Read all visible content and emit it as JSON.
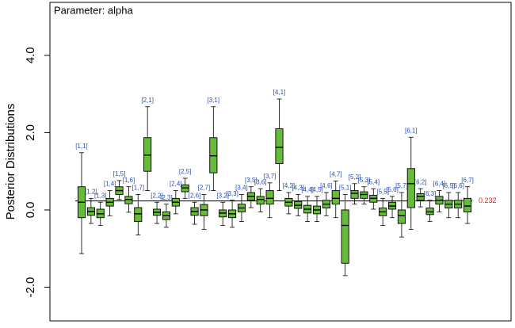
{
  "chart_data": {
    "type": "box",
    "title": "Parameter: alpha",
    "y_label": "Posterior Distributions",
    "categories": [
      "[1,1]",
      "[1,2]",
      "[1,3]",
      "[1,4]",
      "[1,5]",
      "[1,6]",
      "[1,7]",
      "[2,1]",
      "[2,2]",
      "[2,3]",
      "[2,4]",
      "[2,5]",
      "[2,6]",
      "[2,7]",
      "[3,1]",
      "[3,2]",
      "[3,3]",
      "[3,4]",
      "[3,5]",
      "[3,6]",
      "[3,7]",
      "[4,1]",
      "[4,2]",
      "[4,3]",
      "[4,4]",
      "[4,5]",
      "[4,6]",
      "[4,7]",
      "[5,1]",
      "[5,2]",
      "[5,3]",
      "[5,4]",
      "[5,5]",
      "[5,6]",
      "[5,7]",
      "[6,1]",
      "[6,2]",
      "[6,3]",
      "[6,4]",
      "[6,5]",
      "[6,6]",
      "[6,7]"
    ],
    "boxes": [
      [
        -1.13,
        -0.2,
        0.2,
        0.6,
        1.48
      ],
      [
        -0.35,
        -0.14,
        -0.04,
        0.06,
        0.3
      ],
      [
        -0.4,
        -0.2,
        -0.1,
        0.02,
        0.2
      ],
      [
        -0.15,
        0.1,
        0.2,
        0.3,
        0.5
      ],
      [
        0.27,
        0.4,
        0.5,
        0.6,
        0.76
      ],
      [
        -0.06,
        0.16,
        0.27,
        0.35,
        0.6
      ],
      [
        -0.65,
        -0.3,
        -0.1,
        0.06,
        0.4
      ],
      [
        0.5,
        1.0,
        1.42,
        1.87,
        2.67
      ],
      [
        -0.35,
        -0.14,
        -0.06,
        0.02,
        0.2
      ],
      [
        -0.45,
        -0.25,
        -0.15,
        -0.05,
        0.15
      ],
      [
        -0.1,
        0.1,
        0.2,
        0.3,
        0.5
      ],
      [
        0.3,
        0.47,
        0.57,
        0.65,
        0.82
      ],
      [
        -0.37,
        -0.14,
        -0.04,
        0.06,
        0.2
      ],
      [
        -0.5,
        -0.15,
        0.0,
        0.14,
        0.4
      ],
      [
        0.5,
        0.96,
        1.4,
        1.87,
        2.67
      ],
      [
        -0.4,
        -0.18,
        -0.08,
        0.0,
        0.2
      ],
      [
        -0.45,
        -0.2,
        -0.1,
        0.0,
        0.25
      ],
      [
        -0.3,
        -0.05,
        0.05,
        0.15,
        0.4
      ],
      [
        0.06,
        0.25,
        0.35,
        0.45,
        0.6
      ],
      [
        -0.05,
        0.15,
        0.27,
        0.35,
        0.55
      ],
      [
        -0.2,
        0.15,
        0.3,
        0.5,
        0.7
      ],
      [
        0.5,
        1.2,
        1.62,
        2.1,
        2.87
      ],
      [
        -0.1,
        0.1,
        0.2,
        0.3,
        0.45
      ],
      [
        -0.15,
        0.04,
        0.12,
        0.22,
        0.4
      ],
      [
        -0.3,
        -0.08,
        0.02,
        0.12,
        0.35
      ],
      [
        -0.3,
        -0.1,
        0.0,
        0.1,
        0.35
      ],
      [
        -0.15,
        0.05,
        0.15,
        0.25,
        0.45
      ],
      [
        -0.2,
        0.15,
        0.3,
        0.5,
        0.75
      ],
      [
        -1.7,
        -1.38,
        -0.4,
        0.0,
        0.4
      ],
      [
        0.15,
        0.3,
        0.43,
        0.5,
        0.68
      ],
      [
        0.15,
        0.3,
        0.4,
        0.47,
        0.6
      ],
      [
        0.02,
        0.2,
        0.3,
        0.38,
        0.55
      ],
      [
        -0.4,
        -0.15,
        -0.05,
        0.05,
        0.3
      ],
      [
        -0.2,
        0.02,
        0.1,
        0.2,
        0.35
      ],
      [
        -0.7,
        -0.35,
        -0.15,
        0.0,
        0.45
      ],
      [
        -0.5,
        0.06,
        0.68,
        1.07,
        1.88
      ],
      [
        0.08,
        0.25,
        0.35,
        0.42,
        0.55
      ],
      [
        -0.3,
        -0.12,
        -0.05,
        0.05,
        0.25
      ],
      [
        -0.05,
        0.15,
        0.25,
        0.35,
        0.5
      ],
      [
        -0.2,
        0.05,
        0.15,
        0.25,
        0.45
      ],
      [
        -0.2,
        0.05,
        0.15,
        0.25,
        0.45
      ],
      [
        -0.35,
        -0.05,
        0.1,
        0.3,
        0.6
      ]
    ],
    "color": "#66bb3a",
    "label_color": "#2a4fb0",
    "reference_line": 0.232,
    "reference_color": "#e02020",
    "ylim": [
      -2.87,
      5.37
    ],
    "yticks": [
      {
        "value": -2,
        "label": "-2.0"
      },
      {
        "value": 0,
        "label": "0.0"
      },
      {
        "value": 2,
        "label": "2.0"
      },
      {
        "value": 4,
        "label": "4.0"
      }
    ]
  }
}
